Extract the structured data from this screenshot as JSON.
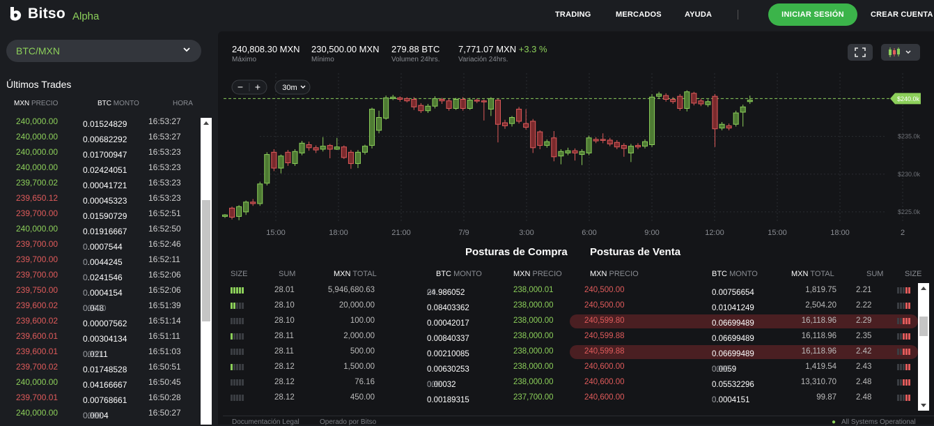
{
  "brand": {
    "name": "Bitso",
    "tag": "Alpha"
  },
  "nav": {
    "trading": "TRADING",
    "markets": "MERCADOS",
    "help": "AYUDA",
    "login": "INICIAR SESIÓN",
    "signup": "CREAR CUENTA"
  },
  "pair": "BTC/MXN",
  "last_trades": {
    "title": "Últimos Trades",
    "headers": {
      "price_cur": "MXN",
      "price": "PRECIO",
      "amount_cur": "BTC",
      "amount": "MONTO",
      "time": "HORA"
    },
    "rows": [
      {
        "price": "240,000.00",
        "amount": "0.01524829",
        "amount_dim": "",
        "time": "16:53:27",
        "side": "buy"
      },
      {
        "price": "240,000.00",
        "amount": "0.00682292",
        "amount_dim": "",
        "time": "16:53:27",
        "side": "buy"
      },
      {
        "price": "240,000.00",
        "amount": "0.01700947",
        "amount_dim": "",
        "time": "16:53:23",
        "side": "buy"
      },
      {
        "price": "240,000.00",
        "amount": "0.02424051",
        "amount_dim": "",
        "time": "16:53:23",
        "side": "buy"
      },
      {
        "price": "239,700.02",
        "amount": "0.00041721",
        "amount_dim": "",
        "time": "16:53:23",
        "side": "buy"
      },
      {
        "price": "239,650.12",
        "amount": "0.00045323",
        "amount_dim": "",
        "time": "16:53:23",
        "side": "sell"
      },
      {
        "price": "239,700.00",
        "amount": "0.01590729",
        "amount_dim": "",
        "time": "16:52:51",
        "side": "sell"
      },
      {
        "price": "240,000.00",
        "amount": "0.01916667",
        "amount_dim": "",
        "time": "16:52:50",
        "side": "buy"
      },
      {
        "price": "239,700.00",
        "amount": "0.0007544",
        "amount_dim": "0",
        "time": "16:52:46",
        "side": "sell"
      },
      {
        "price": "239,700.00",
        "amount": "0.0044245",
        "amount_dim": "0",
        "time": "16:52:11",
        "side": "sell"
      },
      {
        "price": "239,700.00",
        "amount": "0.0241546",
        "amount_dim": "0",
        "time": "16:52:06",
        "side": "sell"
      },
      {
        "price": "239,750.00",
        "amount": "0.0004154",
        "amount_dim": "0",
        "time": "16:52:06",
        "side": "sell"
      },
      {
        "price": "239,600.02",
        "amount": "0.048",
        "amount_dim": "00000",
        "time": "16:51:39",
        "side": "sell"
      },
      {
        "price": "239,600.02",
        "amount": "0.00007562",
        "amount_dim": "",
        "time": "16:51:14",
        "side": "sell"
      },
      {
        "price": "239,600.01",
        "amount": "0.00304134",
        "amount_dim": "",
        "time": "16:51:11",
        "side": "sell"
      },
      {
        "price": "239,600.01",
        "amount": "0.0211",
        "amount_dim": "0000",
        "time": "16:51:03",
        "side": "sell"
      },
      {
        "price": "239,700.02",
        "amount": "0.01748528",
        "amount_dim": "",
        "time": "16:50:51",
        "side": "sell"
      },
      {
        "price": "240,000.00",
        "amount": "0.04166667",
        "amount_dim": "",
        "time": "16:50:45",
        "side": "buy"
      },
      {
        "price": "239,700.01",
        "amount": "0.00768661",
        "amount_dim": "",
        "time": "16:50:28",
        "side": "sell"
      },
      {
        "price": "240,000.00",
        "amount": "0.0004",
        "amount_dim": "0000",
        "time": "16:50:27",
        "side": "buy"
      }
    ]
  },
  "stats": [
    {
      "value": "240,808.30 MXN",
      "label": "Máximo",
      "pct": ""
    },
    {
      "value": "230,500.00 MXN",
      "label": "Mínimo",
      "pct": ""
    },
    {
      "value": "279.88 BTC",
      "label": "Volumen 24hrs.",
      "pct": ""
    },
    {
      "value": "7,771.07 MXN",
      "label": "Variación 24hrs.",
      "pct": "+3.3 %"
    }
  ],
  "chart_data": {
    "type": "candlestick",
    "interval": "30m",
    "x_ticks": [
      "15:00",
      "18:00",
      "21:00",
      "7/9",
      "3:00",
      "6:00",
      "9:00",
      "12:00",
      "15:00",
      "18:00",
      "2"
    ],
    "y_ticks": [
      "$240.0k",
      "$235.0k",
      "$230.0k",
      "$225.0k"
    ],
    "ylim": [
      223700,
      242900
    ],
    "last_price_label": "$240.0k",
    "last_price": 240000,
    "candles": [
      [
        0,
        224400,
        224600,
        224200,
        224700
      ],
      [
        1,
        225500,
        224300,
        224000,
        225700
      ],
      [
        2,
        224400,
        225700,
        223900,
        225900
      ],
      [
        3,
        225000,
        226300,
        224600,
        226500
      ],
      [
        4,
        226300,
        226100,
        225800,
        226700
      ],
      [
        5,
        226100,
        228700,
        225800,
        229000
      ],
      [
        6,
        228800,
        232600,
        228500,
        232900
      ],
      [
        7,
        232900,
        230800,
        230400,
        233300
      ],
      [
        8,
        230800,
        232400,
        230100,
        232600
      ],
      [
        9,
        232900,
        231500,
        231100,
        233200
      ],
      [
        10,
        231400,
        233000,
        231100,
        233300
      ],
      [
        11,
        232800,
        234100,
        232500,
        234400
      ],
      [
        12,
        233900,
        233500,
        233100,
        234300
      ],
      [
        13,
        233500,
        233200,
        232800,
        233800
      ],
      [
        14,
        233300,
        233700,
        233000,
        234900
      ],
      [
        15,
        233800,
        233300,
        232100,
        234000
      ],
      [
        16,
        233300,
        233600,
        233200,
        234800
      ],
      [
        17,
        233600,
        232200,
        232000,
        233800
      ],
      [
        18,
        232900,
        231400,
        230700,
        233200
      ],
      [
        19,
        231400,
        232900,
        230800,
        233200
      ],
      [
        20,
        232900,
        233700,
        232600,
        233900
      ],
      [
        21,
        233800,
        238600,
        233400,
        238800
      ],
      [
        22,
        235800,
        237500,
        235400,
        238400
      ],
      [
        23,
        237400,
        240100,
        237200,
        240400
      ],
      [
        24,
        240000,
        240200,
        239800,
        240500
      ],
      [
        25,
        240100,
        239900,
        239600,
        240300
      ],
      [
        26,
        240000,
        239700,
        239500,
        240200
      ],
      [
        27,
        239900,
        238900,
        238500,
        240200
      ],
      [
        28,
        239100,
        238400,
        238100,
        239400
      ],
      [
        29,
        238400,
        239000,
        238100,
        239300
      ],
      [
        30,
        239000,
        240000,
        238700,
        240300
      ],
      [
        31,
        239900,
        239700,
        239300,
        240100
      ],
      [
        32,
        239700,
        238700,
        238400,
        240000
      ],
      [
        33,
        238700,
        239900,
        238500,
        240100
      ],
      [
        34,
        239900,
        238700,
        238400,
        240200
      ],
      [
        35,
        238700,
        239800,
        238500,
        240100
      ],
      [
        36,
        239800,
        239700,
        239400,
        240000
      ],
      [
        37,
        239700,
        239600,
        237100,
        239900
      ],
      [
        38,
        238600,
        240000,
        237700,
        240200
      ],
      [
        39,
        239800,
        236600,
        234200,
        240000
      ],
      [
        40,
        236800,
        236400,
        236000,
        237200
      ],
      [
        41,
        236700,
        237500,
        236300,
        237700
      ],
      [
        42,
        238600,
        237000,
        236700,
        238900
      ],
      [
        43,
        236700,
        236200,
        235900,
        238600
      ],
      [
        44,
        237000,
        233500,
        232800,
        237300
      ],
      [
        45,
        235600,
        233800,
        233300,
        235800
      ],
      [
        46,
        233800,
        234300,
        233500,
        234600
      ],
      [
        47,
        234800,
        232300,
        231700,
        235700
      ],
      [
        48,
        232400,
        233000,
        231300,
        233300
      ],
      [
        49,
        232800,
        233100,
        232500,
        233500
      ],
      [
        50,
        233100,
        232800,
        231800,
        233400
      ],
      [
        51,
        232600,
        233000,
        231200,
        233300
      ],
      [
        52,
        232800,
        234800,
        232500,
        235100
      ],
      [
        53,
        234600,
        234400,
        234100,
        234900
      ],
      [
        54,
        234600,
        234500,
        234100,
        235400
      ],
      [
        55,
        234500,
        234000,
        233700,
        234800
      ],
      [
        56,
        234200,
        233600,
        233300,
        234500
      ],
      [
        57,
        233800,
        233400,
        232300,
        234100
      ],
      [
        58,
        232800,
        233700,
        231600,
        234000
      ],
      [
        59,
        233800,
        233600,
        233300,
        234100
      ],
      [
        60,
        233700,
        234300,
        233400,
        234600
      ],
      [
        61,
        233900,
        240200,
        233600,
        240600
      ],
      [
        62,
        240300,
        240600,
        240000,
        240900
      ],
      [
        63,
        240400,
        239900,
        239600,
        240700
      ],
      [
        64,
        239900,
        239600,
        239300,
        240200
      ],
      [
        65,
        240300,
        238700,
        238400,
        240600
      ],
      [
        66,
        238700,
        240900,
        238300,
        241100
      ],
      [
        67,
        240700,
        239400,
        239100,
        240900
      ],
      [
        68,
        239700,
        239300,
        239000,
        240000
      ],
      [
        69,
        239200,
        239600,
        238900,
        239900
      ],
      [
        70,
        240300,
        236000,
        233600,
        240600
      ],
      [
        71,
        236100,
        236600,
        235800,
        236900
      ],
      [
        72,
        236400,
        236100,
        235800,
        236700
      ],
      [
        73,
        236600,
        238100,
        236300,
        238400
      ],
      [
        74,
        238200,
        238900,
        236300,
        239200
      ],
      [
        75,
        239600,
        239800,
        239300,
        240400
      ]
    ]
  },
  "orderbook": {
    "buy_title": "Posturas de Compra",
    "sell_title": "Posturas de Venta",
    "buy_headers": {
      "size": "SIZE",
      "sum": "SUM",
      "total_cur": "MXN",
      "total": "TOTAL",
      "amount_cur": "BTC",
      "amount": "MONTO",
      "price_cur": "MXN",
      "price": "PRECIO"
    },
    "sell_headers": {
      "price_cur": "MXN",
      "price": "PRECIO",
      "amount_cur": "BTC",
      "amount": "MONTO",
      "total_cur": "MXN",
      "total": "TOTAL",
      "sum": "SUM",
      "size": "SIZE"
    },
    "buy_rows": [
      {
        "size": 5,
        "sum": "28.01",
        "total": "5,946,680.63",
        "amount": "24.986052",
        "amount_dim": "00",
        "price": "238,000.01"
      },
      {
        "size": 2,
        "sum": "28.10",
        "total": "20,000.00",
        "amount": "0.08403362",
        "amount_dim": "",
        "price": "238,000.00"
      },
      {
        "size": 0,
        "sum": "28.10",
        "total": "100.00",
        "amount": "0.00042017",
        "amount_dim": "",
        "price": "238,000.00"
      },
      {
        "size": 1,
        "sum": "28.11",
        "total": "2,000.00",
        "amount": "0.00840337",
        "amount_dim": "",
        "price": "238,000.00"
      },
      {
        "size": 0,
        "sum": "28.11",
        "total": "500.00",
        "amount": "0.00210085",
        "amount_dim": "",
        "price": "238,000.00"
      },
      {
        "size": 1,
        "sum": "28.12",
        "total": "1,500.00",
        "amount": "0.00630253",
        "amount_dim": "",
        "price": "238,000.00"
      },
      {
        "size": 0,
        "sum": "28.12",
        "total": "76.16",
        "amount": "0.00032",
        "amount_dim": "000",
        "price": "238,000.00"
      },
      {
        "size": 0,
        "sum": "28.12",
        "total": "450.00",
        "amount": "0.00189315",
        "amount_dim": "",
        "price": "237,700.00"
      }
    ],
    "sell_rows": [
      {
        "price": "240,500.00",
        "amount": "0.00756654",
        "amount_dim": "",
        "total": "1,819.75",
        "sum": "2.21",
        "size": 2,
        "hl": false
      },
      {
        "price": "240,500.00",
        "amount": "0.01041249",
        "amount_dim": "",
        "total": "2,504.20",
        "sum": "2.22",
        "size": 2,
        "hl": false
      },
      {
        "price": "240,599.80",
        "amount": "0.06699489",
        "amount_dim": "",
        "total": "16,118.96",
        "sum": "2.29",
        "size": 3,
        "hl": true
      },
      {
        "price": "240,599.88",
        "amount": "0.06699489",
        "amount_dim": "",
        "total": "16,118.96",
        "sum": "2.35",
        "size": 3,
        "hl": false
      },
      {
        "price": "240,599.88",
        "amount": "0.06699489",
        "amount_dim": "",
        "total": "16,118.96",
        "sum": "2.42",
        "size": 3,
        "hl": true
      },
      {
        "price": "240,600.00",
        "amount": "0.0059",
        "amount_dim": "0000",
        "total": "1,419.54",
        "sum": "2.43",
        "size": 2,
        "hl": false
      },
      {
        "price": "240,600.00",
        "amount": "0.05532296",
        "amount_dim": "",
        "total": "13,310.70",
        "sum": "2.48",
        "size": 3,
        "hl": false
      },
      {
        "price": "240,600.00",
        "amount": "0.0004151",
        "amount_dim": "0",
        "total": "99.87",
        "sum": "2.48",
        "size": 2,
        "hl": false
      }
    ]
  },
  "footer": {
    "legal": "Documentación Legal",
    "operated": "Operado por Bitso",
    "status": "All Systems Operational"
  },
  "colors": {
    "buy": "#8ccf5a",
    "sell": "#e05b5b",
    "accent": "#3bb44a",
    "background": "#1b1d21",
    "panel": "#141518"
  }
}
